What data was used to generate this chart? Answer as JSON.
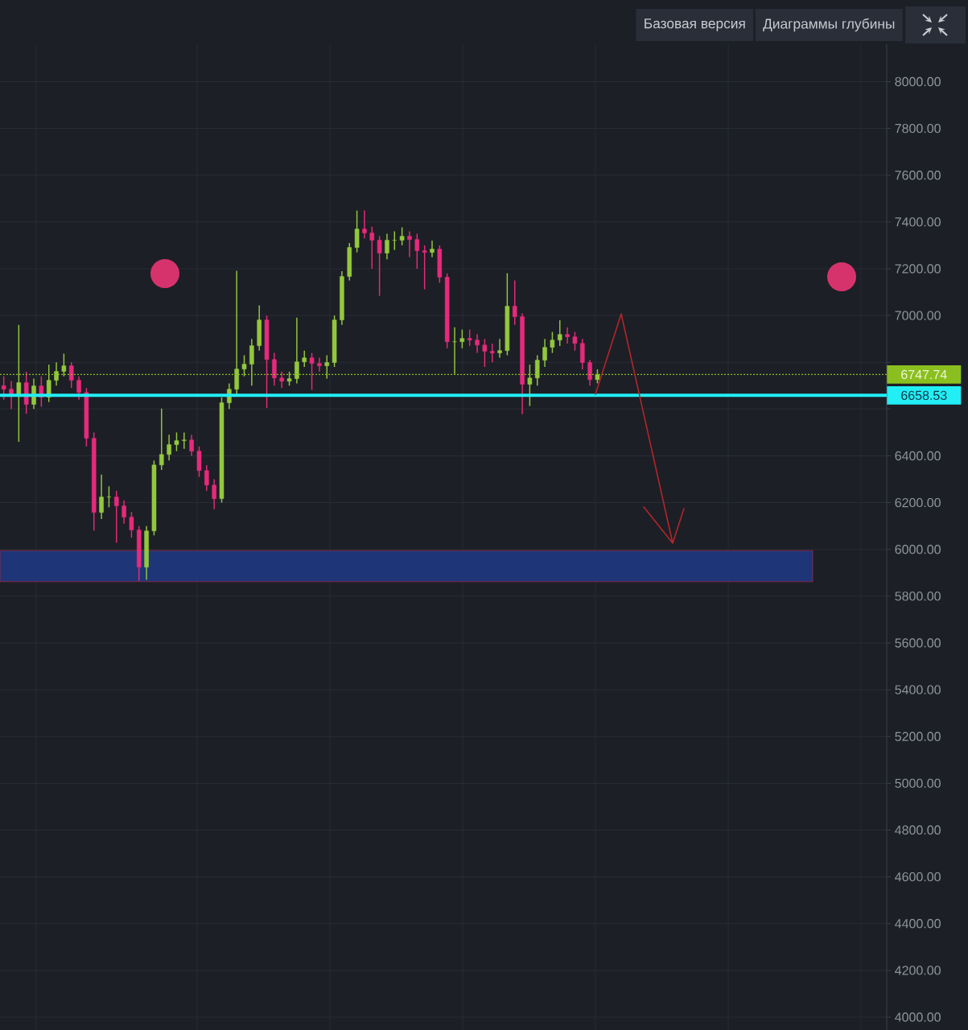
{
  "chart_data": {
    "type": "candlestick",
    "categories": [
      null,
      null,
      null,
      null,
      null,
      null,
      null,
      null,
      null,
      null,
      null,
      null,
      null,
      null,
      null,
      null,
      null,
      null,
      null,
      null,
      null,
      null,
      null,
      null,
      null,
      null,
      null,
      null,
      null,
      null,
      null,
      null,
      null,
      null,
      null,
      null,
      null,
      null,
      null,
      null,
      null,
      null,
      null,
      null,
      null,
      null,
      null,
      null,
      null,
      null,
      null,
      null,
      null,
      null,
      null,
      null,
      null,
      null,
      null,
      null,
      null,
      null,
      null,
      null,
      null,
      null,
      null,
      null,
      null,
      null,
      null,
      null,
      null,
      null,
      null,
      null,
      null,
      null,
      null,
      null,
      null,
      null,
      null,
      null,
      null,
      null,
      null,
      null,
      null,
      null,
      null,
      null,
      null,
      null,
      null,
      null,
      null,
      null,
      null,
      null,
      null,
      null,
      null,
      null,
      null,
      null,
      null,
      null,
      null,
      null,
      null,
      null,
      null,
      null,
      null,
      null,
      null,
      null
    ],
    "ohlc": [
      [
        6700,
        6740,
        6640,
        6685
      ],
      [
        6685,
        6720,
        6600,
        6654
      ],
      [
        6654,
        6960,
        6460,
        6713
      ],
      [
        6713,
        6760,
        6580,
        6620
      ],
      [
        6620,
        6730,
        6600,
        6699
      ],
      [
        6699,
        6740,
        6610,
        6651
      ],
      [
        6651,
        6790,
        6630,
        6723
      ],
      [
        6723,
        6800,
        6700,
        6761
      ],
      [
        6761,
        6837,
        6740,
        6785
      ],
      [
        6785,
        6800,
        6690,
        6723
      ],
      [
        6723,
        6740,
        6640,
        6671
      ],
      [
        6671,
        6690,
        6440,
        6475
      ],
      [
        6475,
        6500,
        6080,
        6158
      ],
      [
        6158,
        6320,
        6130,
        6224
      ],
      [
        6224,
        6270,
        6180,
        6224
      ],
      [
        6224,
        6250,
        6028,
        6186
      ],
      [
        6186,
        6210,
        6110,
        6138
      ],
      [
        6138,
        6160,
        6050,
        6083
      ],
      [
        6083,
        6100,
        5866,
        5924
      ],
      [
        5924,
        6100,
        5870,
        6079
      ],
      [
        6079,
        6380,
        6060,
        6361
      ],
      [
        6361,
        6602,
        6340,
        6406
      ],
      [
        6406,
        6490,
        6380,
        6448
      ],
      [
        6448,
        6500,
        6420,
        6465
      ],
      [
        6465,
        6500,
        6430,
        6468
      ],
      [
        6468,
        6490,
        6400,
        6420
      ],
      [
        6420,
        6440,
        6310,
        6337
      ],
      [
        6337,
        6360,
        6250,
        6275
      ],
      [
        6275,
        6300,
        6172,
        6217
      ],
      [
        6217,
        6650,
        6200,
        6627
      ],
      [
        6627,
        6710,
        6600,
        6685
      ],
      [
        6685,
        7191,
        6660,
        6771
      ],
      [
        6771,
        6830,
        6740,
        6792
      ],
      [
        6792,
        6900,
        6700,
        6871
      ],
      [
        6871,
        7043,
        6850,
        6981
      ],
      [
        6981,
        7000,
        6605,
        6812
      ],
      [
        6812,
        6840,
        6700,
        6733
      ],
      [
        6733,
        6760,
        6690,
        6719
      ],
      [
        6719,
        6760,
        6700,
        6730
      ],
      [
        6730,
        6991,
        6710,
        6802
      ],
      [
        6802,
        6850,
        6780,
        6819
      ],
      [
        6819,
        6840,
        6682,
        6795
      ],
      [
        6795,
        6820,
        6760,
        6785
      ],
      [
        6785,
        6830,
        6730,
        6799
      ],
      [
        6799,
        7000,
        6780,
        6981
      ],
      [
        6981,
        7190,
        6960,
        7167
      ],
      [
        7167,
        7310,
        7150,
        7291
      ],
      [
        7291,
        7449,
        7270,
        7370
      ],
      [
        7370,
        7449,
        7330,
        7353
      ],
      [
        7353,
        7380,
        7200,
        7322
      ],
      [
        7322,
        7340,
        7084,
        7267
      ],
      [
        7267,
        7350,
        7240,
        7322
      ],
      [
        7322,
        7360,
        7280,
        7322
      ],
      [
        7322,
        7377,
        7300,
        7339
      ],
      [
        7339,
        7360,
        7250,
        7325
      ],
      [
        7325,
        7350,
        7200,
        7277
      ],
      [
        7277,
        7300,
        7112,
        7270
      ],
      [
        7270,
        7320,
        7250,
        7284
      ],
      [
        7284,
        7300,
        7140,
        7164
      ],
      [
        7164,
        7180,
        6860,
        6888
      ],
      [
        6888,
        6950,
        6750,
        6888
      ],
      [
        6888,
        6940,
        6860,
        6902
      ],
      [
        6902,
        6940,
        6870,
        6895
      ],
      [
        6895,
        6920,
        6840,
        6874
      ],
      [
        6874,
        6900,
        6780,
        6847
      ],
      [
        6847,
        6880,
        6800,
        6840
      ],
      [
        6840,
        6900,
        6820,
        6850
      ],
      [
        6850,
        7181,
        6830,
        7040
      ],
      [
        7040,
        7150,
        6960,
        6995
      ],
      [
        6995,
        7010,
        6578,
        6706
      ],
      [
        6706,
        6790,
        6613,
        6733
      ],
      [
        6733,
        6830,
        6700,
        6809
      ],
      [
        6809,
        6900,
        6780,
        6864
      ],
      [
        6864,
        6930,
        6840,
        6895
      ],
      [
        6895,
        6980,
        6870,
        6919
      ],
      [
        6919,
        6950,
        6880,
        6909
      ],
      [
        6909,
        6930,
        6850,
        6881
      ],
      [
        6881,
        6900,
        6770,
        6799
      ],
      [
        6799,
        6810,
        6700,
        6726
      ],
      [
        6726,
        6770,
        6710,
        6747.74
      ],
      null,
      null,
      null,
      null,
      null,
      null,
      null,
      null,
      null,
      null,
      null,
      null,
      null,
      null,
      null,
      null,
      null,
      null,
      null,
      null,
      null,
      null,
      null,
      null,
      null,
      null,
      null,
      null,
      null,
      null,
      null,
      null,
      null,
      null,
      null,
      null,
      null,
      null
    ],
    "colors": [
      "#e62a7c",
      "#e62a7c",
      "#93c83e",
      "#e62a7c",
      "#93c83e",
      "#e62a7c",
      "#93c83e",
      "#93c83e",
      "#93c83e",
      "#e62a7c",
      "#e62a7c",
      "#e62a7c",
      "#e62a7c",
      "#93c83e",
      "#93c83e",
      "#e62a7c",
      "#e62a7c",
      "#e62a7c",
      "#e62a7c",
      "#93c83e",
      "#93c83e",
      "#93c83e",
      "#93c83e",
      "#93c83e",
      "#93c83e",
      "#e62a7c",
      "#e62a7c",
      "#e62a7c",
      "#e62a7c",
      "#93c83e",
      "#93c83e",
      "#93c83e",
      "#93c83e",
      "#93c83e",
      "#93c83e",
      "#e62a7c",
      "#e62a7c",
      "#e62a7c",
      "#93c83e",
      "#93c83e",
      "#93c83e",
      "#e62a7c",
      "#e62a7c",
      "#93c83e",
      "#93c83e",
      "#93c83e",
      "#93c83e",
      "#93c83e",
      "#e62a7c",
      "#e62a7c",
      "#e62a7c",
      "#93c83e",
      "#93c83e",
      "#93c83e",
      "#e62a7c",
      "#e62a7c",
      "#e62a7c",
      "#93c83e",
      "#e62a7c",
      "#e62a7c",
      "#93c83e",
      "#93c83e",
      "#e62a7c",
      "#e62a7c",
      "#e62a7c",
      "#e62a7c",
      "#93c83e",
      "#93c83e",
      "#e62a7c",
      "#e62a7c",
      "#93c83e",
      "#93c83e",
      "#93c83e",
      "#93c83e",
      "#93c83e",
      "#e62a7c",
      "#e62a7c",
      "#e62a7c",
      "#e62a7c",
      "#93c83e",
      null,
      null,
      null,
      null,
      null,
      null,
      null,
      null,
      null,
      null,
      null,
      null,
      null,
      null,
      null,
      null,
      null,
      null,
      null,
      null,
      null,
      null,
      null,
      null,
      null,
      null,
      null,
      null,
      null,
      null,
      null,
      null,
      null,
      null,
      null,
      null,
      null,
      null
    ],
    "ylim": [
      3945,
      8160
    ],
    "yticks": [
      {
        "value": 4000,
        "label": "4000.00"
      },
      {
        "value": 4200,
        "label": "4200.00"
      },
      {
        "value": 4400,
        "label": "4400.00"
      },
      {
        "value": 4600,
        "label": "4600.00"
      },
      {
        "value": 4800,
        "label": "4800.00"
      },
      {
        "value": 5000,
        "label": "5000.00"
      },
      {
        "value": 5200,
        "label": "5200.00"
      },
      {
        "value": 5400,
        "label": "5400.00"
      },
      {
        "value": 5600,
        "label": "5600.00"
      },
      {
        "value": 5800,
        "label": "5800.00"
      },
      {
        "value": 6000,
        "label": "6000.00"
      },
      {
        "value": 6200,
        "label": "6200.00"
      },
      {
        "value": 6400,
        "label": "6400.00"
      },
      {
        "value": 6600,
        "label": null
      },
      {
        "value": 6800,
        "label": null
      },
      {
        "value": 7000,
        "label": "7000.00"
      },
      {
        "value": 7200,
        "label": "7200.00"
      },
      {
        "value": 7400,
        "label": "7400.00"
      },
      {
        "value": 7600,
        "label": "7600.00"
      },
      {
        "value": 7800,
        "label": "7800.00"
      },
      {
        "value": 8000,
        "label": "8000.00"
      }
    ],
    "tick_labels": "y",
    "grid": true,
    "ref_lines": [
      {
        "axis": "y",
        "value": 6747.74,
        "label": "6747.74",
        "color": "#8bbf1f",
        "line_style": "dotted"
      },
      {
        "axis": "y",
        "value": 6658.53,
        "label": "6658.53",
        "color": "#22eef5",
        "line_style": "solid"
      }
    ],
    "bands": [
      {
        "axis": "y",
        "from": 5862,
        "to": 5995,
        "color": "#1e3578"
      }
    ],
    "annotations": [
      "Базовая версия",
      "Диаграммы глубины"
    ]
  }
}
